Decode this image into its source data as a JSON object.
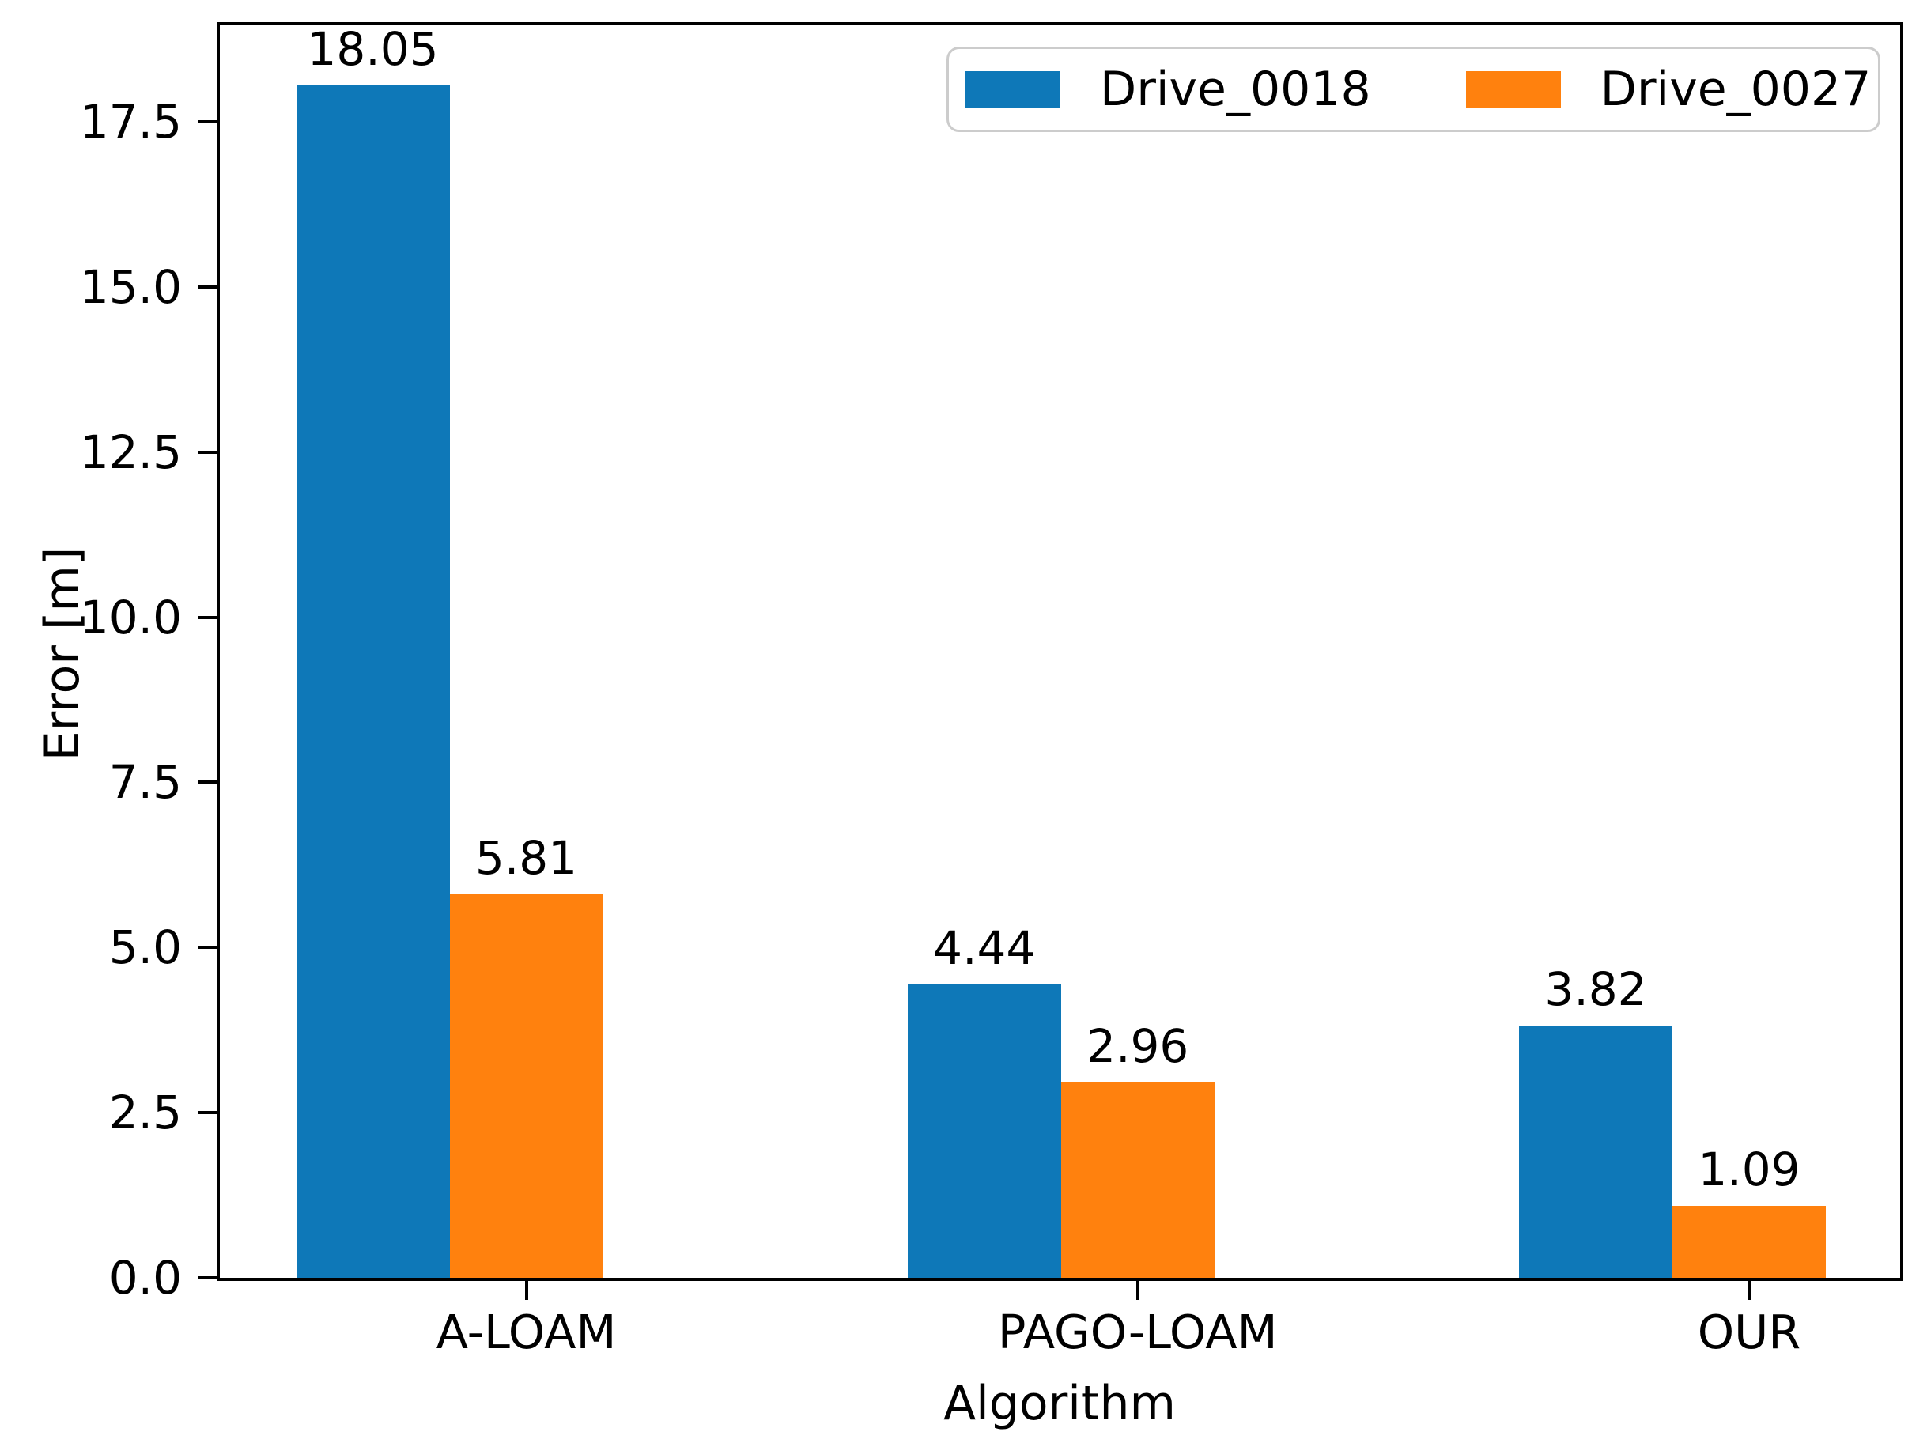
{
  "chart_data": {
    "type": "bar",
    "title": "",
    "xlabel": "Algorithm",
    "ylabel": "Error [m]",
    "categories": [
      "A-LOAM",
      "PAGO-LOAM",
      "OUR"
    ],
    "series": [
      {
        "name": "Drive_0018",
        "color": "#0e78b8",
        "values": [
          18.05,
          4.44,
          3.82
        ],
        "value_labels": [
          "18.05",
          "4.44",
          "3.82"
        ]
      },
      {
        "name": "Drive_0027",
        "color": "#ff810e",
        "values": [
          5.81,
          2.96,
          1.09
        ],
        "value_labels": [
          "5.81",
          "2.96",
          "1.09"
        ]
      }
    ],
    "yticks": [
      0.0,
      2.5,
      5.0,
      7.5,
      10.0,
      12.5,
      15.0,
      17.5
    ],
    "ytick_labels": [
      "0.0",
      "2.5",
      "5.0",
      "7.5",
      "10.0",
      "12.5",
      "15.0",
      "17.5"
    ],
    "ylim": [
      0,
      18.96
    ],
    "grid": false,
    "legend_position": "upper right",
    "colors": {
      "axis": "#000000",
      "text": "#000000",
      "legend_border": "#cccccc",
      "background": "#ffffff"
    }
  }
}
